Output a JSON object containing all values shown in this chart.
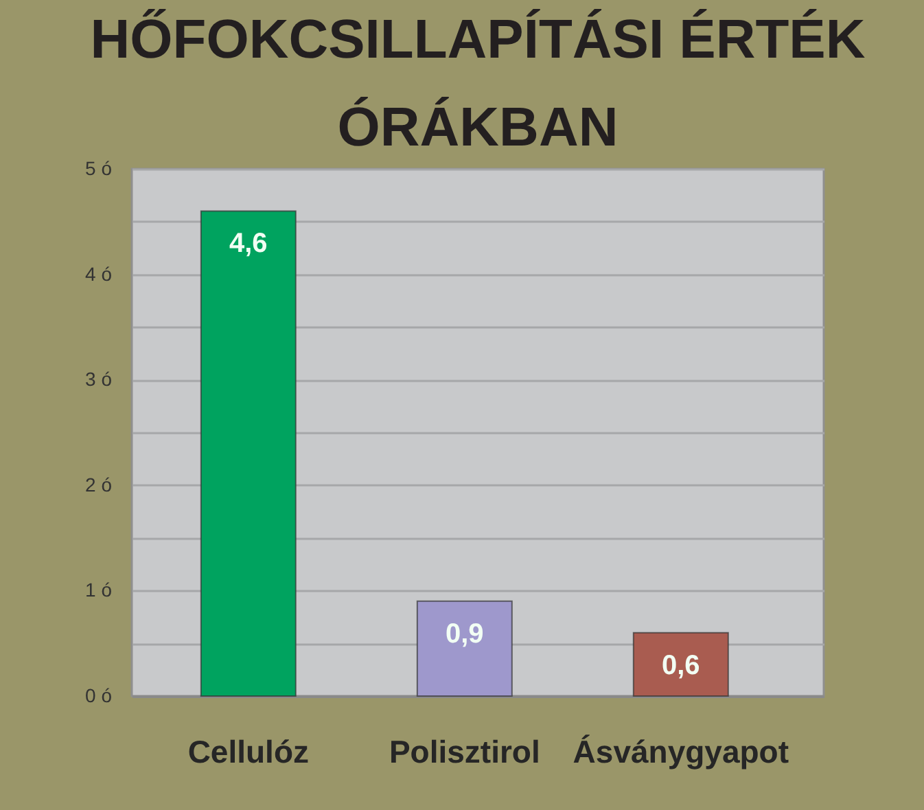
{
  "chart_data": {
    "type": "bar",
    "title": "HŐFOKCSILLAPÍTÁSI ÉRTÉK ÓRÁKBAN",
    "categories": [
      "Cellulóz",
      "Polisztirol",
      "Ásványgyapot"
    ],
    "values": [
      4.6,
      0.9,
      0.6
    ],
    "colors": [
      "#00a35f",
      "#9e98cc",
      "#a95c50"
    ],
    "value_labels": [
      "4,6",
      "0,9",
      "0,6"
    ],
    "ylim": [
      0,
      5
    ],
    "yticks": [
      {
        "value": 0,
        "label": "0 ó"
      },
      {
        "value": 0.5,
        "label": null
      },
      {
        "value": 1,
        "label": "1 ó"
      },
      {
        "value": 1.5,
        "label": null
      },
      {
        "value": 2,
        "label": "2 ó"
      },
      {
        "value": 2.5,
        "label": null
      },
      {
        "value": 3,
        "label": "3 ó"
      },
      {
        "value": 3.5,
        "label": null
      },
      {
        "value": 4,
        "label": "4 ó"
      },
      {
        "value": 4.5,
        "label": null
      },
      {
        "value": 5,
        "label": "5 ó"
      }
    ],
    "grid": true
  }
}
